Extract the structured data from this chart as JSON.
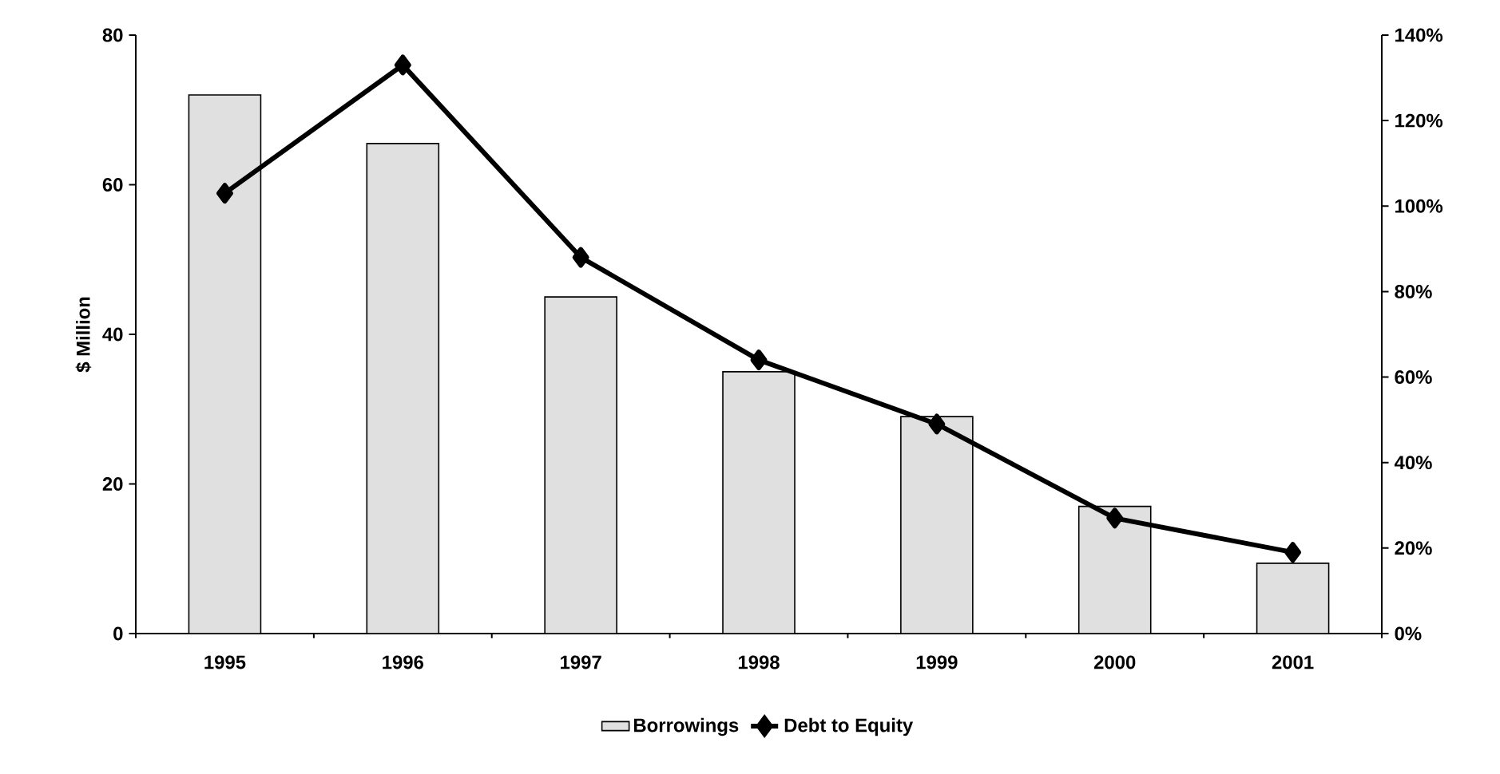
{
  "chart_data": {
    "type": "bar",
    "ylabel": "$ Million",
    "categories": [
      "1995",
      "1996",
      "1997",
      "1998",
      "1999",
      "2000",
      "2001"
    ],
    "series": [
      {
        "name": "Borrowings",
        "color": "#e0e0e0",
        "values": [
          72,
          65.5,
          45,
          35,
          29,
          17,
          9.4
        ]
      },
      {
        "name": "Debt to Equity",
        "type": "line",
        "axis": "y2",
        "color": "#000000",
        "values": [
          103,
          133,
          88,
          64,
          49,
          27,
          19
        ]
      }
    ],
    "ylim": [
      0,
      80
    ],
    "yticks": [
      0,
      20,
      40,
      60,
      80
    ],
    "y2lim": [
      0,
      140
    ],
    "y2ticks": [
      {
        "value": 0,
        "label": "0%"
      },
      {
        "value": 20,
        "label": "20%"
      },
      {
        "value": 40,
        "label": "40%"
      },
      {
        "value": 60,
        "label": "60%"
      },
      {
        "value": 80,
        "label": "80%"
      },
      {
        "value": 100,
        "label": "100%"
      },
      {
        "value": 120,
        "label": "120%"
      },
      {
        "value": 140,
        "label": "140%"
      }
    ],
    "legend": "bottom",
    "grid": false,
    "marker": "diamond"
  }
}
